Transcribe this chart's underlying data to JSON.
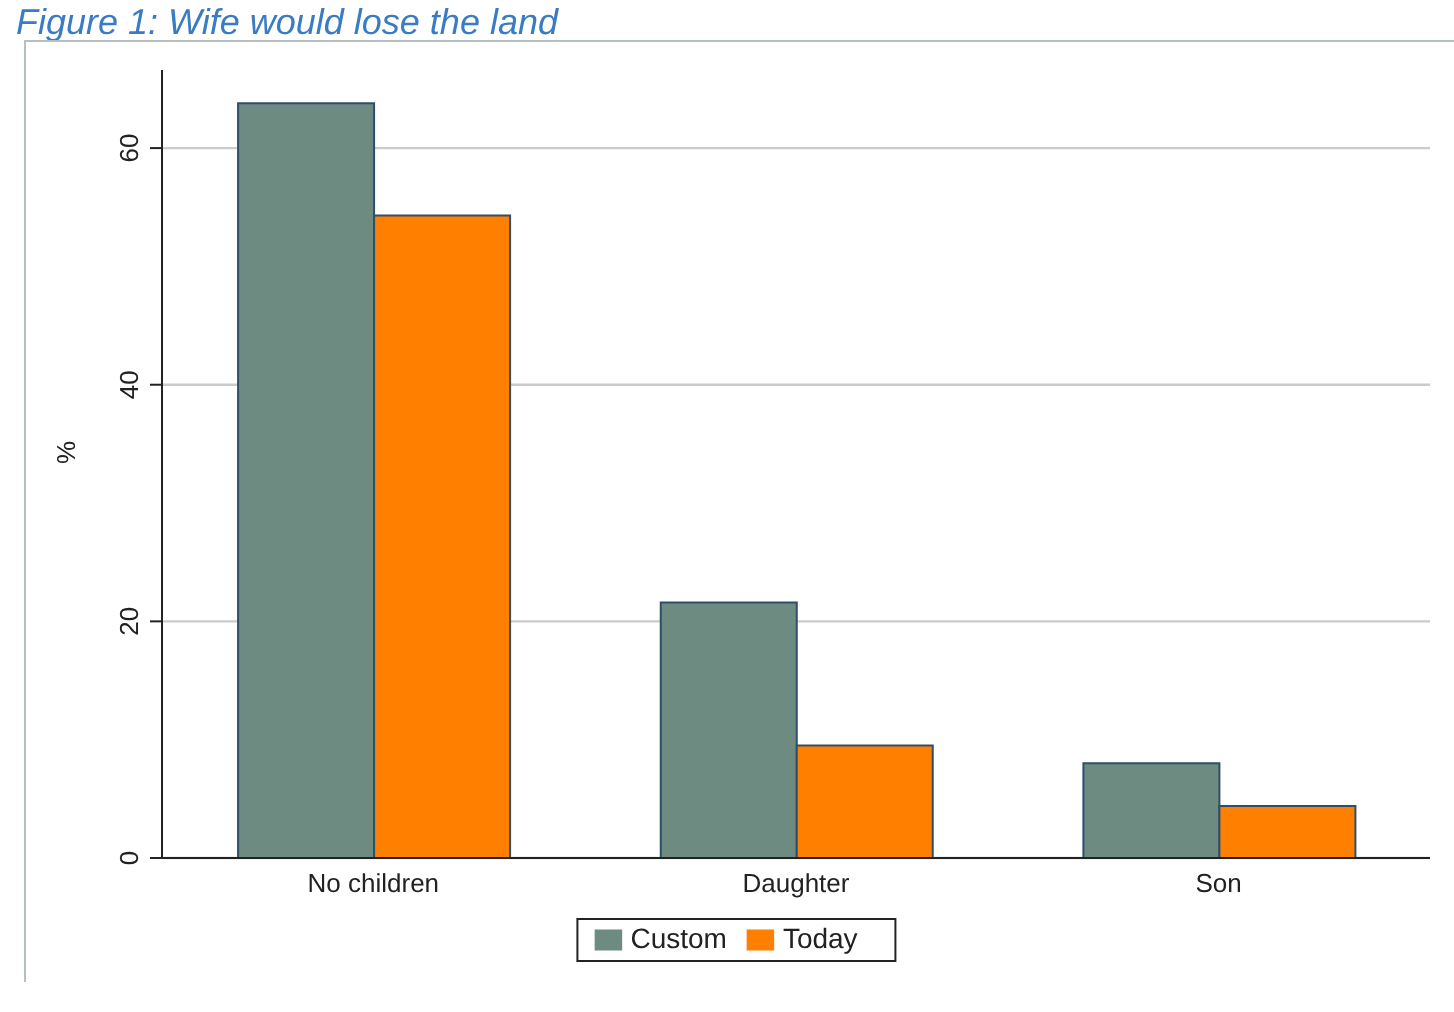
{
  "chart_data": {
    "type": "bar",
    "title": "Figure 1:  Wife would lose the land",
    "ylabel": "%",
    "categories": [
      "No children",
      "Daughter",
      "Son"
    ],
    "series": [
      {
        "name": "Custom",
        "color": "#6e8b81",
        "values": [
          63.8,
          21.6,
          8.0
        ]
      },
      {
        "name": "Today",
        "color": "#ff7f00",
        "values": [
          54.3,
          9.5,
          4.4
        ]
      }
    ],
    "ylim": [
      0,
      66.6
    ],
    "yticks": [
      0,
      20,
      40,
      60
    ],
    "grid": "y",
    "legend": "bottom"
  }
}
